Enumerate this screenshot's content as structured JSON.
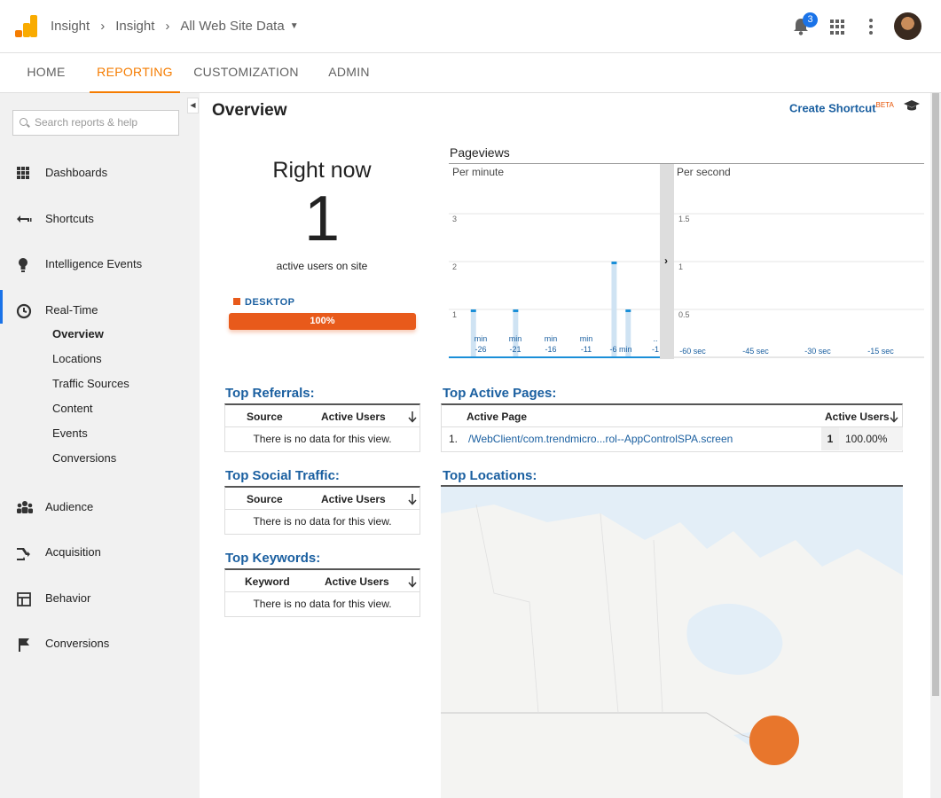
{
  "header": {
    "breadcrumbs": [
      "Insight",
      "Insight",
      "All Web Site Data"
    ],
    "notification_count": "3"
  },
  "nav": {
    "tabs": [
      "HOME",
      "REPORTING",
      "CUSTOMIZATION",
      "ADMIN"
    ],
    "active_tab": "REPORTING"
  },
  "sidebar": {
    "search_placeholder": "Search reports & help",
    "items": [
      {
        "label": "Dashboards",
        "icon": "dashboard-icon"
      },
      {
        "label": "Shortcuts",
        "icon": "shortcut-icon"
      },
      {
        "label": "Intelligence Events",
        "icon": "lightbulb-icon"
      },
      {
        "label": "Real-Time",
        "icon": "clock-icon"
      },
      {
        "label": "Audience",
        "icon": "people-icon"
      },
      {
        "label": "Acquisition",
        "icon": "acquisition-icon"
      },
      {
        "label": "Behavior",
        "icon": "behavior-icon"
      },
      {
        "label": "Conversions",
        "icon": "flag-icon"
      }
    ],
    "realtime_subitems": [
      "Overview",
      "Locations",
      "Traffic Sources",
      "Content",
      "Events",
      "Conversions"
    ],
    "active_subitem": "Overview"
  },
  "main": {
    "title": "Overview",
    "create_shortcut": "Create Shortcut",
    "beta": "BETA",
    "right_now": "Right now",
    "active_users_count": "1",
    "active_users_label": "active users on site",
    "device_label": "DESKTOP",
    "device_percent_label": "100%",
    "device_share": 1.0
  },
  "pageviews": {
    "title": "Pageviews",
    "per_minute_label": "Per minute",
    "per_second_label": "Per second",
    "arrow": "›",
    "left_y_ticks": [
      "3",
      "2",
      "1"
    ],
    "right_y_ticks": [
      "1.5",
      "1",
      "0.5"
    ],
    "left_x_ticks": [
      {
        "top": "min",
        "bottom": "-26"
      },
      {
        "top": "min",
        "bottom": "-21"
      },
      {
        "top": "min",
        "bottom": "-16"
      },
      {
        "top": "min",
        "bottom": "-11"
      },
      {
        "top": "",
        "bottom": "-6 min"
      },
      {
        "top": "..",
        "bottom": "-1"
      }
    ],
    "right_x_ticks": [
      "-60 sec",
      "-45 sec",
      "-30 sec",
      "-15 sec"
    ]
  },
  "chart_data": {
    "type": "bar",
    "title": "Pageviews",
    "subtitle": "Per minute",
    "x": [
      -30,
      -29,
      -28,
      -27,
      -26,
      -25,
      -24,
      -23,
      -22,
      -21,
      -20,
      -19,
      -18,
      -17,
      -16,
      -15,
      -14,
      -13,
      -12,
      -11,
      -10,
      -9,
      -8,
      -7,
      -6,
      -5,
      -4,
      -3,
      -2,
      -1
    ],
    "values": [
      0,
      0,
      0,
      1,
      0,
      0,
      0,
      0,
      0,
      1,
      0,
      0,
      0,
      0,
      0,
      0,
      0,
      0,
      0,
      0,
      0,
      0,
      0,
      2,
      0,
      1,
      0,
      0,
      0,
      0
    ],
    "ylim": [
      0,
      3.5
    ],
    "yticks": [
      1,
      2,
      3
    ],
    "color": "#cfe3f3",
    "cap_color": "#1a8fd8"
  },
  "referrals": {
    "title": "Top Referrals:",
    "col1": "Source",
    "col2": "Active Users",
    "empty": "There is no data for this view."
  },
  "social": {
    "title": "Top Social Traffic:",
    "col1": "Source",
    "col2": "Active Users",
    "empty": "There is no data for this view."
  },
  "keywords": {
    "title": "Top Keywords:",
    "col1": "Keyword",
    "col2": "Active Users",
    "empty": "There is no data for this view."
  },
  "active_pages": {
    "title": "Top Active Pages:",
    "col1": "Active Page",
    "col2": "Active Users",
    "rows": [
      {
        "index": "1.",
        "page": "/WebClient/com.trendmicro...rol--AppControlSPA.screen",
        "users": "1",
        "percent": "100.00%"
      }
    ]
  },
  "locations": {
    "title": "Top Locations:"
  },
  "colors": {
    "accent": "#f57c00",
    "link": "#1a5fa0",
    "device": "#e85a1b",
    "bubble": "#e8762c"
  }
}
